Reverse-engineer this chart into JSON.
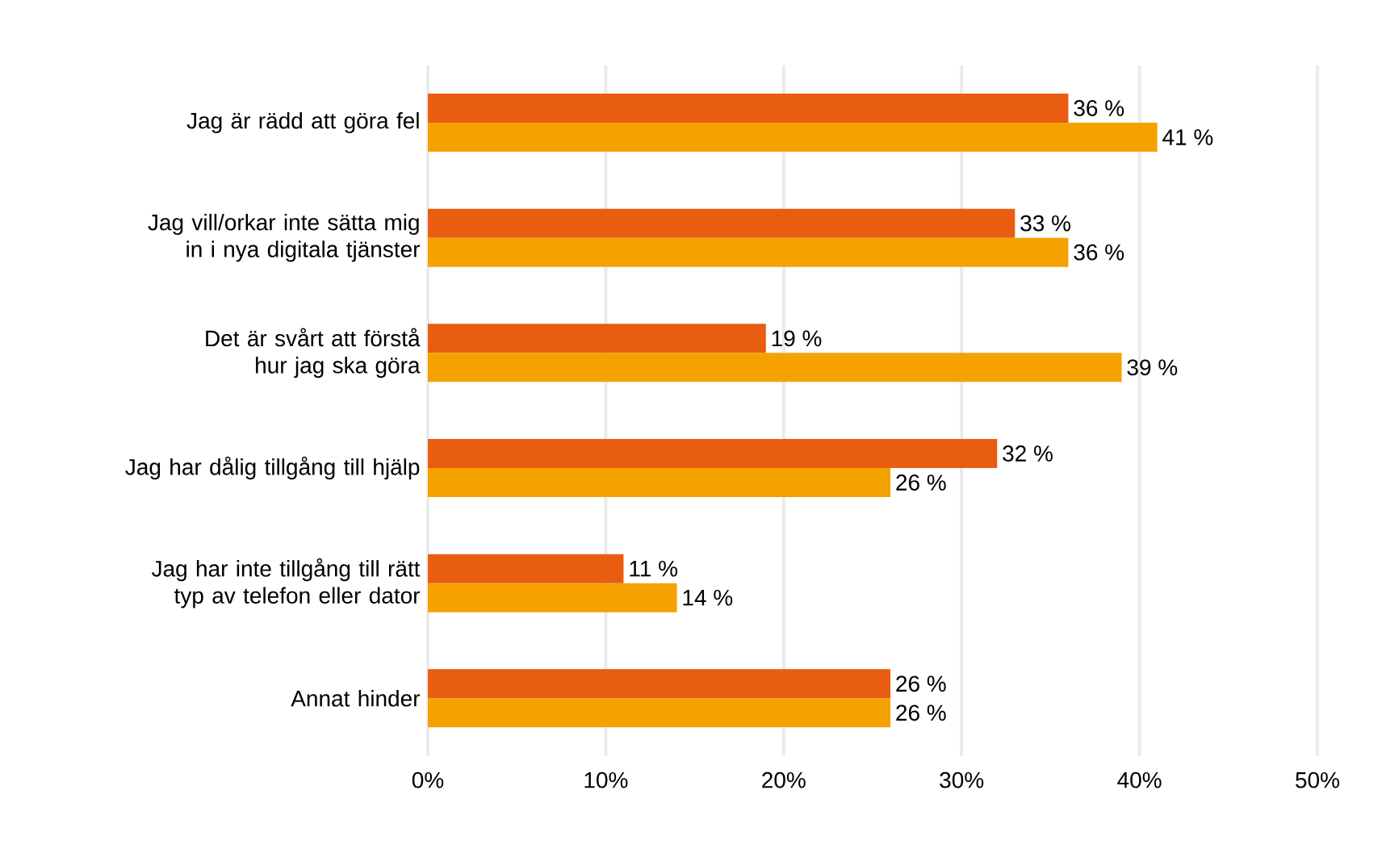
{
  "chart_data": {
    "type": "bar",
    "orientation": "horizontal",
    "categories": [
      "Jag är rädd att göra fel",
      "Jag vill/orkar inte sätta mig in i nya digitala tjänster",
      "Det är svårt att förstå hur jag ska göra",
      "Jag har dålig tillgång till hjälp",
      "Jag har inte tillgång till rätt typ av telefon eller dator",
      "Annat hinder"
    ],
    "series": [
      {
        "color": "#e85d0f",
        "values": [
          36,
          33,
          19,
          32,
          11,
          26
        ],
        "value_labels": [
          "36 %",
          "33 %",
          "19 %",
          "32 %",
          "11 %",
          "26 %"
        ]
      },
      {
        "color": "#f5a200",
        "values": [
          41,
          36,
          39,
          26,
          14,
          26
        ],
        "value_labels": [
          "41 %",
          "36 %",
          "39 %",
          "26 %",
          "14 %",
          "26 %"
        ]
      }
    ],
    "xlim": [
      0,
      50
    ],
    "xticks": [
      {
        "value": 0,
        "label": "0%"
      },
      {
        "value": 10,
        "label": "10%"
      },
      {
        "value": 20,
        "label": "20%"
      },
      {
        "value": 30,
        "label": "30%"
      },
      {
        "value": 40,
        "label": "40%"
      },
      {
        "value": 50,
        "label": "50%"
      }
    ],
    "grid": "x"
  }
}
